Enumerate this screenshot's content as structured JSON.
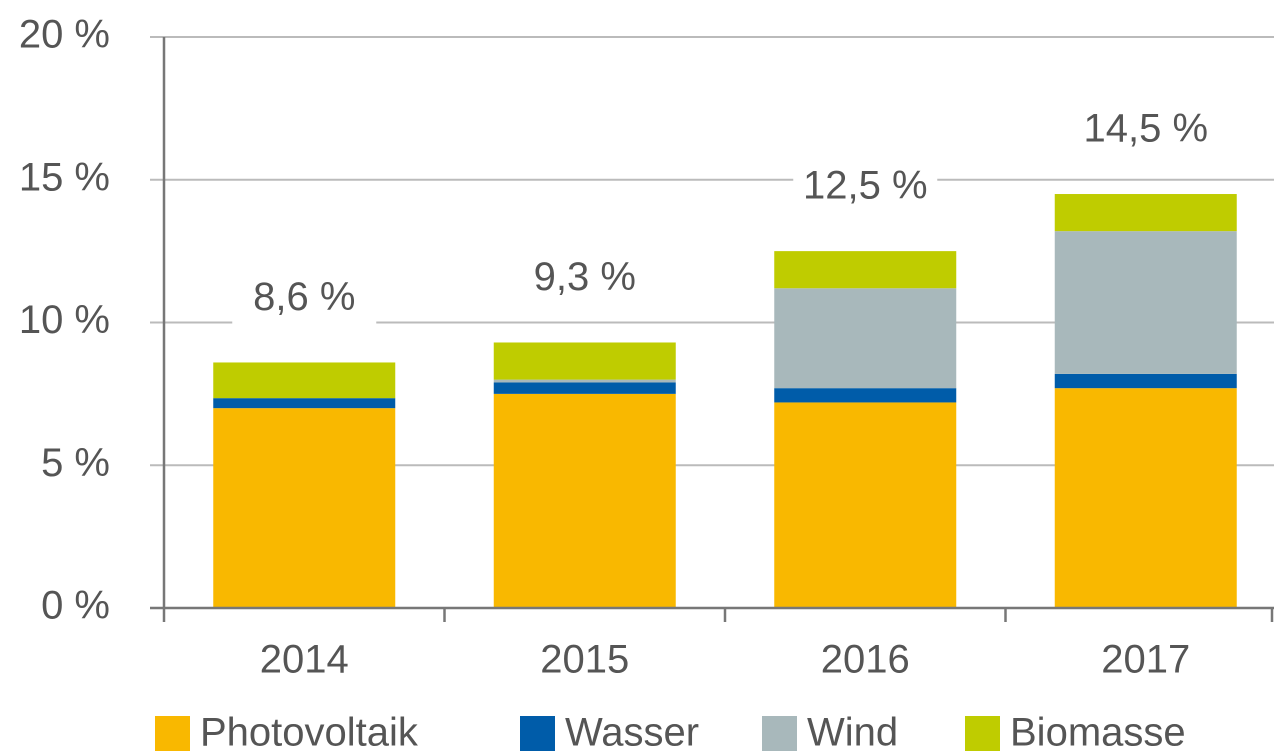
{
  "chart_data": {
    "type": "stacked_bar",
    "categories": [
      "2014",
      "2015",
      "2016",
      "2017"
    ],
    "series": [
      {
        "name": "Photovoltaik",
        "color": "#f9b800",
        "values": [
          7.0,
          7.5,
          7.2,
          7.7
        ]
      },
      {
        "name": "Wasser",
        "color": "#005ca9",
        "values": [
          0.35,
          0.4,
          0.5,
          0.5
        ]
      },
      {
        "name": "Wind",
        "color": "#a8b8bb",
        "values": [
          0,
          0.1,
          3.5,
          5.0
        ]
      },
      {
        "name": "Biomasse",
        "color": "#bfcc00",
        "values": [
          1.25,
          1.3,
          1.3,
          1.3
        ]
      }
    ],
    "totals": {
      "values": [
        8.6,
        9.3,
        12.5,
        14.5
      ],
      "value_labels": [
        "8,6 %",
        "9,3 %",
        "12,5 %",
        "14,5 %"
      ]
    },
    "ylim": [
      0,
      20
    ],
    "yticks": [
      {
        "value": 0,
        "label": "0 %"
      },
      {
        "value": 5,
        "label": "5 %"
      },
      {
        "value": 10,
        "label": "10 %"
      },
      {
        "value": 15,
        "label": "15 %"
      },
      {
        "value": 20,
        "label": "20 %"
      }
    ],
    "grid": true
  }
}
